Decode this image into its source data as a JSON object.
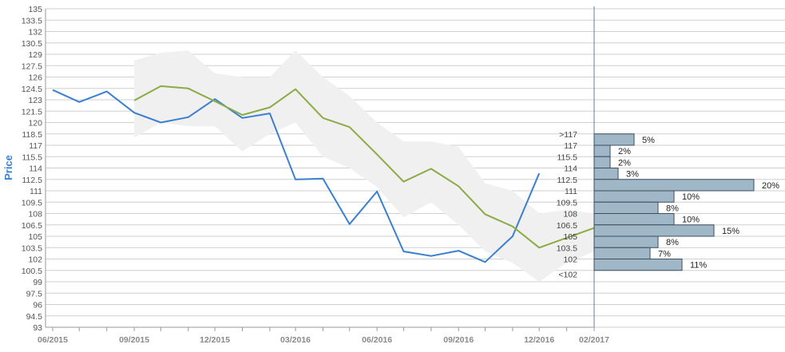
{
  "chart_data": {
    "type": "line",
    "ylabel": "Price",
    "ylim": [
      93,
      135
    ],
    "grid": true,
    "y_ticks": [
      "93",
      "94.5",
      "96",
      "97.5",
      "99",
      "100.5",
      "102",
      "103.5",
      "105",
      "106.5",
      "108",
      "109.5",
      "111",
      "112.5",
      "114",
      "115.5",
      "117",
      "118.5",
      "120",
      "121.5",
      "123",
      "124.5",
      "126",
      "127.5",
      "129",
      "130.5",
      "132",
      "133.5",
      "135"
    ],
    "x_ticks": [
      {
        "label": "06/2015",
        "date": "2015-06-01"
      },
      {
        "label": "09/2015",
        "date": "2015-09-01"
      },
      {
        "label": "12/2015",
        "date": "2015-12-01"
      },
      {
        "label": "03/2016",
        "date": "2016-03-01"
      },
      {
        "label": "06/2016",
        "date": "2016-06-01"
      },
      {
        "label": "09/2016",
        "date": "2016-09-01"
      },
      {
        "label": "12/2016",
        "date": "2016-12-01"
      },
      {
        "label": "02/2017",
        "date": "2017-02-01"
      }
    ],
    "series": [
      {
        "color": "#3b7fd0",
        "points": [
          {
            "x": "2015-06-01",
            "y": 124.3
          },
          {
            "x": "2015-07-01",
            "y": 122.7
          },
          {
            "x": "2015-08-01",
            "y": 124.1
          },
          {
            "x": "2015-09-01",
            "y": 121.3
          },
          {
            "x": "2015-10-01",
            "y": 120.0
          },
          {
            "x": "2015-11-01",
            "y": 120.7
          },
          {
            "x": "2015-12-01",
            "y": 123.1
          },
          {
            "x": "2016-01-01",
            "y": 120.6
          },
          {
            "x": "2016-02-01",
            "y": 121.2
          },
          {
            "x": "2016-03-01",
            "y": 112.5
          },
          {
            "x": "2016-04-01",
            "y": 112.6
          },
          {
            "x": "2016-05-01",
            "y": 106.6
          },
          {
            "x": "2016-06-01",
            "y": 110.9
          },
          {
            "x": "2016-07-01",
            "y": 103.0
          },
          {
            "x": "2016-08-01",
            "y": 102.4
          },
          {
            "x": "2016-09-01",
            "y": 103.1
          },
          {
            "x": "2016-10-01",
            "y": 101.6
          },
          {
            "x": "2016-11-01",
            "y": 105.0
          },
          {
            "x": "2016-12-01",
            "y": 113.3
          }
        ]
      },
      {
        "color": "#8bab45",
        "points": [
          {
            "x": "2015-09-01",
            "y": 122.9
          },
          {
            "x": "2015-10-01",
            "y": 124.8
          },
          {
            "x": "2015-11-01",
            "y": 124.5
          },
          {
            "x": "2015-12-01",
            "y": 122.8
          },
          {
            "x": "2016-01-01",
            "y": 121.0
          },
          {
            "x": "2016-02-01",
            "y": 122.0
          },
          {
            "x": "2016-03-01",
            "y": 124.4
          },
          {
            "x": "2016-04-01",
            "y": 120.6
          },
          {
            "x": "2016-05-01",
            "y": 119.4
          },
          {
            "x": "2016-06-01",
            "y": 115.8
          },
          {
            "x": "2016-07-01",
            "y": 112.2
          },
          {
            "x": "2016-08-01",
            "y": 113.9
          },
          {
            "x": "2016-09-01",
            "y": 111.6
          },
          {
            "x": "2016-10-01",
            "y": 107.9
          },
          {
            "x": "2016-11-01",
            "y": 106.3
          },
          {
            "x": "2016-12-01",
            "y": 103.5
          },
          {
            "x": "2017-01-01",
            "y": 104.8
          },
          {
            "x": "2017-02-01",
            "y": 106.1
          },
          {
            "x": "2017-02-12",
            "y": 108.0
          }
        ]
      }
    ],
    "band": {
      "color": "#f0f0f0",
      "points": [
        {
          "x": "2015-09-01",
          "upper": 128.2,
          "lower": 118.0
        },
        {
          "x": "2015-10-01",
          "upper": 129.2,
          "lower": 120.0
        },
        {
          "x": "2015-11-01",
          "upper": 129.5,
          "lower": 119.5
        },
        {
          "x": "2015-12-01",
          "upper": 126.5,
          "lower": 119.5
        },
        {
          "x": "2016-01-01",
          "upper": 126.0,
          "lower": 116.2
        },
        {
          "x": "2016-02-01",
          "upper": 126.0,
          "lower": 118.5
        },
        {
          "x": "2016-03-01",
          "upper": 129.5,
          "lower": 120.0
        },
        {
          "x": "2016-04-01",
          "upper": 126.0,
          "lower": 115.5
        },
        {
          "x": "2016-05-01",
          "upper": 123.5,
          "lower": 114.0
        },
        {
          "x": "2016-06-01",
          "upper": 120.0,
          "lower": 111.5
        },
        {
          "x": "2016-07-01",
          "upper": 117.5,
          "lower": 107.5
        },
        {
          "x": "2016-08-01",
          "upper": 117.5,
          "lower": 109.5
        },
        {
          "x": "2016-09-01",
          "upper": 116.8,
          "lower": 106.5
        },
        {
          "x": "2016-10-01",
          "upper": 112.0,
          "lower": 103.0
        },
        {
          "x": "2016-11-01",
          "upper": 111.0,
          "lower": 101.5
        },
        {
          "x": "2016-12-01",
          "upper": 108.0,
          "lower": 99.0
        },
        {
          "x": "2017-01-01",
          "upper": 108.5,
          "lower": 101.5
        },
        {
          "x": "2017-02-01",
          "upper": 108.0,
          "lower": 103.0
        }
      ]
    },
    "distribution": {
      "color": "#9fb7c6",
      "bins": [
        {
          "label": ">117",
          "low": 117,
          "high": 118.5,
          "pct": 5,
          "pct_label": "5%"
        },
        {
          "label": "117",
          "low": 115.5,
          "high": 117,
          "pct": 2,
          "pct_label": "2%"
        },
        {
          "label": "115.5",
          "low": 114,
          "high": 115.5,
          "pct": 2,
          "pct_label": "2%"
        },
        {
          "label": "114",
          "low": 112.5,
          "high": 114,
          "pct": 3,
          "pct_label": "3%"
        },
        {
          "label": "112.5",
          "low": 111,
          "high": 112.5,
          "pct": 20,
          "pct_label": "20%"
        },
        {
          "label": "111",
          "low": 109.5,
          "high": 111,
          "pct": 10,
          "pct_label": "10%"
        },
        {
          "label": "109.5",
          "low": 108,
          "high": 109.5,
          "pct": 8,
          "pct_label": "8%"
        },
        {
          "label": "108",
          "low": 106.5,
          "high": 108,
          "pct": 10,
          "pct_label": "10%"
        },
        {
          "label": "106.5",
          "low": 105,
          "high": 106.5,
          "pct": 15,
          "pct_label": "15%"
        },
        {
          "label": "105",
          "low": 103.5,
          "high": 105,
          "pct": 8,
          "pct_label": "8%"
        },
        {
          "label": "103.5",
          "low": 102,
          "high": 103.5,
          "pct": 7,
          "pct_label": "7%"
        },
        {
          "label": "102",
          "low": 100.5,
          "high": 102,
          "pct": 11,
          "pct_label": "11%"
        },
        {
          "label": "<102",
          "low": 100.5,
          "high": 100.5,
          "pct": 0,
          "pct_label": ""
        }
      ]
    }
  }
}
